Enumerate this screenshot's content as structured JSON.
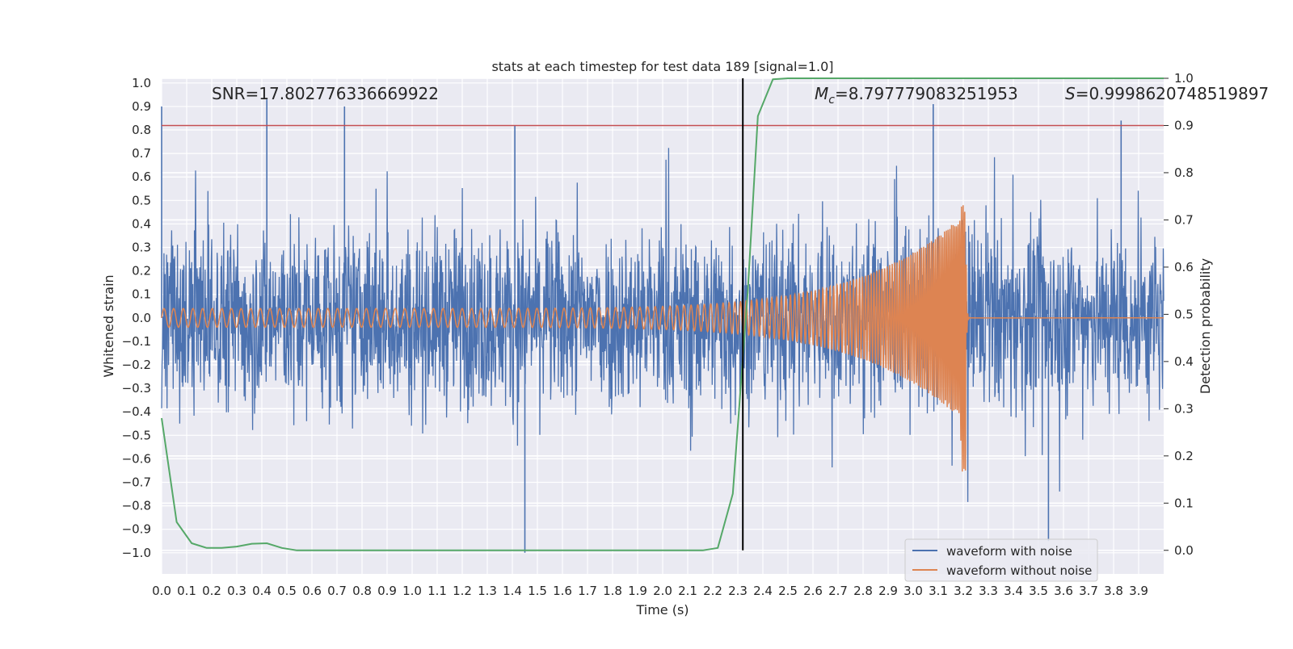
{
  "chart_data": {
    "type": "line",
    "title": "stats at each timestep for test data 189 [signal=1.0]",
    "xlabel": "Time (s)",
    "ylabel": "Whitened strain",
    "y2label": "Detection probability",
    "xlim": [
      0.0,
      4.0
    ],
    "ylim": [
      -1.09,
      1.02
    ],
    "y2lim": [
      -0.05,
      1.0
    ],
    "x_ticks": [
      "0.0",
      "0.1",
      "0.2",
      "0.3",
      "0.4",
      "0.5",
      "0.6",
      "0.7",
      "0.8",
      "0.9",
      "1.0",
      "1.1",
      "1.2",
      "1.3",
      "1.4",
      "1.5",
      "1.6",
      "1.7",
      "1.8",
      "1.9",
      "2.0",
      "2.1",
      "2.2",
      "2.3",
      "2.4",
      "2.5",
      "2.6",
      "2.7",
      "2.8",
      "2.9",
      "3.0",
      "3.1",
      "3.2",
      "3.3",
      "3.4",
      "3.5",
      "3.6",
      "3.7",
      "3.8",
      "3.9"
    ],
    "y_ticks": [
      "1.0",
      "0.9",
      "0.8",
      "0.7",
      "0.6",
      "0.5",
      "0.4",
      "0.3",
      "0.2",
      "0.1",
      "0.0",
      "−0.1",
      "−0.2",
      "−0.3",
      "−0.4",
      "−0.5",
      "−0.6",
      "−0.7",
      "−0.8",
      "−0.9",
      "−1.0"
    ],
    "y2_ticks": [
      "1.0",
      "0.9",
      "0.8",
      "0.7",
      "0.6",
      "0.5",
      "0.4",
      "0.3",
      "0.2",
      "0.1",
      "0.0"
    ],
    "annotations": {
      "snr": "SNR=17.802776336669922",
      "mc_symbol": "M",
      "mc_sub": "c",
      "mc_value": "=8.797779083251953",
      "s_symbol": "S",
      "s_value": "=0.9998620748519897"
    },
    "threshold_line": {
      "y2": 0.9,
      "color": "#c44e52"
    },
    "detection_time_marker": {
      "x": 2.32,
      "color": "#000000"
    },
    "series": [
      {
        "name": "waveform with noise",
        "color": "#4c72b0",
        "description_noise_amplitude": 0.35,
        "notable_peaks": [
          [
            0.0,
            0.9
          ],
          [
            0.42,
            0.93
          ],
          [
            0.73,
            0.9
          ],
          [
            1.41,
            0.82
          ],
          [
            1.45,
            -1.0
          ],
          [
            3.08,
            0.91
          ],
          [
            3.54,
            -0.95
          ],
          [
            3.83,
            0.84
          ]
        ]
      },
      {
        "name": "waveform without noise",
        "color": "#dd8452",
        "chirp": {
          "start_amp": 0.04,
          "merger_time": 3.21,
          "merger_amp_pos": 0.5,
          "merger_amp_neg": -0.68,
          "start_freq_per_s": 26,
          "end_freq_per_s": 160
        }
      },
      {
        "name": "",
        "axis": "y2",
        "color": "#55a868",
        "x": [
          0.0,
          0.06,
          0.12,
          0.18,
          0.24,
          0.3,
          0.36,
          0.42,
          0.48,
          0.54,
          0.6,
          0.66,
          0.72,
          0.78,
          0.84,
          0.9,
          0.96,
          1.02,
          1.08,
          1.14,
          1.2,
          1.26,
          1.32,
          1.38,
          1.44,
          1.5,
          1.56,
          1.62,
          1.68,
          1.74,
          1.8,
          1.86,
          1.92,
          1.98,
          2.04,
          2.1,
          2.16,
          2.22,
          2.28,
          2.34,
          2.38,
          2.44,
          2.5,
          2.56,
          2.62,
          2.68,
          2.74,
          2.8,
          2.86,
          2.92,
          2.98,
          3.04,
          3.1,
          3.16,
          3.22,
          3.28,
          3.34,
          3.4,
          3.46,
          3.52,
          3.58,
          3.64,
          3.7,
          3.76,
          3.82,
          3.88,
          3.94,
          4.0
        ],
        "values": [
          0.28,
          0.06,
          0.015,
          0.005,
          0.005,
          0.008,
          0.014,
          0.015,
          0.005,
          0.0,
          0.0,
          0.0,
          0.0,
          0.0,
          0.0,
          0.0,
          0.0,
          0.0,
          0.0,
          0.0,
          0.0,
          0.0,
          0.0,
          0.0,
          0.0,
          0.0,
          0.0,
          0.0,
          0.0,
          0.0,
          0.0,
          0.0,
          0.0,
          0.0,
          0.0,
          0.0,
          0.0,
          0.005,
          0.12,
          0.55,
          0.92,
          0.998,
          1.0,
          1.0,
          1.0,
          1.0,
          1.0,
          1.0,
          1.0,
          1.0,
          1.0,
          1.0,
          1.0,
          1.0,
          1.0,
          1.0,
          1.0,
          1.0,
          1.0,
          1.0,
          1.0,
          1.0,
          1.0,
          1.0,
          1.0,
          1.0,
          1.0,
          1.0
        ]
      }
    ],
    "grid": true,
    "legend_position": "lower-right",
    "legend_entries": [
      "waveform with noise",
      "waveform without noise"
    ],
    "background": "#eaeaf2"
  }
}
